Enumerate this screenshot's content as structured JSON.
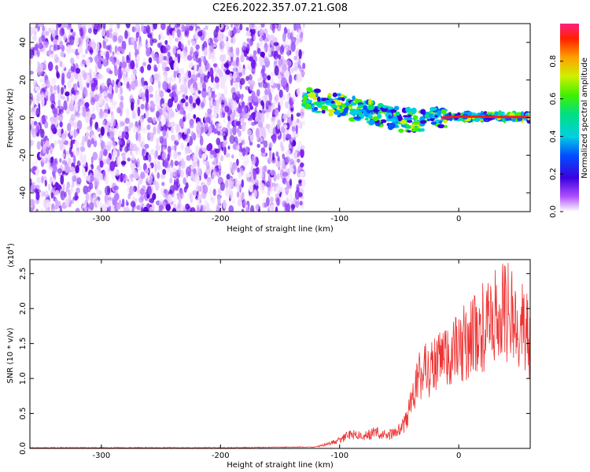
{
  "title": "C2E6.2022.357.07.21.G08",
  "chart_data": [
    {
      "type": "heatmap",
      "name": "spectrogram",
      "title": "C2E6.2022.357.07.21.G08",
      "xlabel": "Height of straight line (km)",
      "ylabel": "Frequency (Hz)",
      "xlim": [
        -360,
        60
      ],
      "ylim": [
        -50,
        50
      ],
      "x_ticks": [
        -300,
        -200,
        -100,
        0
      ],
      "x_tick_labels": [
        "-300",
        "-200",
        "-100",
        "0"
      ],
      "y_ticks": [
        -40,
        -20,
        0,
        20,
        40
      ],
      "y_tick_labels": [
        "-40",
        "-20",
        "0",
        "20",
        "40"
      ],
      "noise_region_x": [
        -360,
        -130
      ],
      "signal_track": {
        "x": [
          -130,
          -110,
          -90,
          -70,
          -50,
          -30,
          -15,
          0,
          20,
          40,
          60
        ],
        "freq_hz": [
          10,
          8,
          5,
          2,
          -1,
          -2,
          0,
          0.5,
          0.5,
          0.3,
          0.3
        ]
      },
      "colorbar": {
        "label": "Normalized spectral amplitude",
        "range": [
          0,
          1
        ],
        "ticks": [
          0.0,
          0.2,
          0.4,
          0.6,
          0.8
        ],
        "tick_labels": [
          "0.0",
          "0.2",
          "0.4",
          "0.6",
          "0.8"
        ]
      }
    },
    {
      "type": "line",
      "name": "snr",
      "xlabel": "Height of straight line (km)",
      "ylabel": "SNR (10 * v/v)",
      "scale_label": "(x10",
      "scale_exponent": "4",
      "scale_suffix": ")",
      "xlim": [
        -360,
        60
      ],
      "ylim": [
        0,
        2.7
      ],
      "x_ticks": [
        -300,
        -200,
        -100,
        0
      ],
      "x_tick_labels": [
        "-300",
        "-200",
        "-100",
        "0"
      ],
      "y_ticks": [
        0.0,
        0.5,
        1.0,
        1.5,
        2.0,
        2.5
      ],
      "y_tick_labels": [
        "0.0",
        "0.5",
        "1.0",
        "1.5",
        "2.0",
        "2.5"
      ],
      "color": "#ee3333",
      "series": [
        {
          "name": "SNR",
          "x": [
            -360,
            -300,
            -200,
            -120,
            -110,
            -100,
            -90,
            -80,
            -70,
            -60,
            -50,
            -45,
            -40,
            -35,
            -30,
            -20,
            -10,
            0,
            10,
            20,
            30,
            35,
            40,
            45,
            50,
            55,
            60
          ],
          "values": [
            0.01,
            0.01,
            0.01,
            0.02,
            0.05,
            0.1,
            0.18,
            0.14,
            0.2,
            0.15,
            0.22,
            0.3,
            0.55,
            0.8,
            0.95,
            1.0,
            1.1,
            1.2,
            1.35,
            1.45,
            1.55,
            1.7,
            1.65,
            1.6,
            1.55,
            1.5,
            1.2
          ]
        }
      ]
    }
  ]
}
